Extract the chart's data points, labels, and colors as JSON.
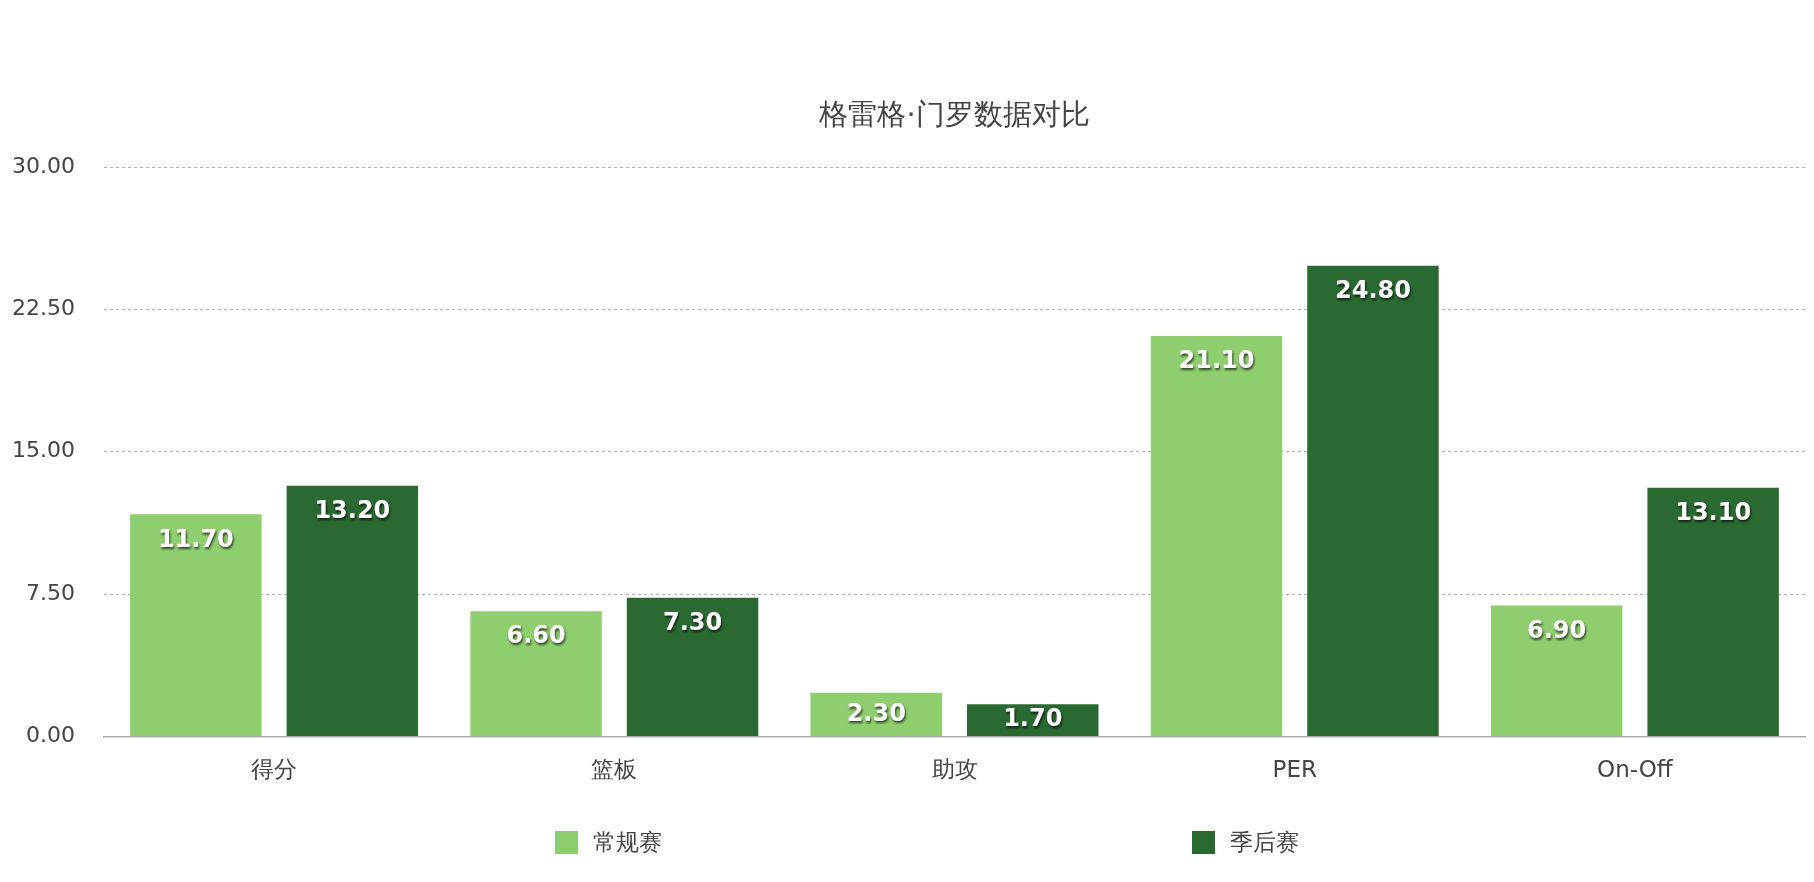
{
  "chart_data": {
    "type": "bar",
    "title": "格雷格·门罗数据对比",
    "categories": [
      "得分",
      "篮板",
      "助攻",
      "PER",
      "On-Off"
    ],
    "series": [
      {
        "name": "常规赛",
        "color": "#8fce6e",
        "values": [
          11.7,
          6.6,
          2.3,
          21.1,
          6.9
        ],
        "value_labels": [
          "11.70",
          "6.60",
          "2.30",
          "21.10",
          "6.90"
        ]
      },
      {
        "name": "季后赛",
        "color": "#2a6a32",
        "values": [
          13.2,
          7.3,
          1.7,
          24.8,
          13.1
        ],
        "value_labels": [
          "13.20",
          "7.30",
          "1.70",
          "24.80",
          "13.10"
        ]
      }
    ],
    "ylim": [
      0,
      30
    ],
    "yticks": [
      {
        "value": 0,
        "label": "0.00"
      },
      {
        "value": 7.5,
        "label": "7.50"
      },
      {
        "value": 15,
        "label": "15.00"
      },
      {
        "value": 22.5,
        "label": "22.50"
      },
      {
        "value": 30,
        "label": "30.00"
      }
    ],
    "grid": "y",
    "legend": "bottom"
  }
}
